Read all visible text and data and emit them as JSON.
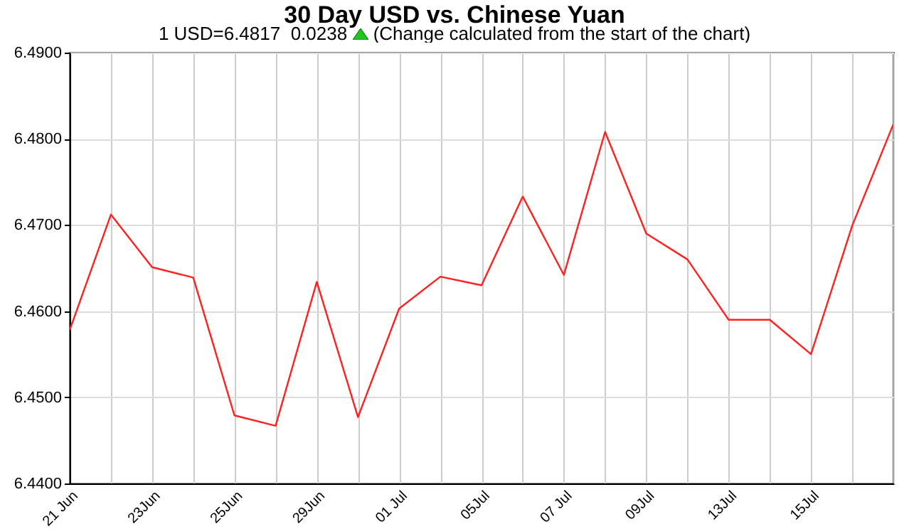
{
  "chart_data": {
    "type": "line",
    "title": "30 Day USD vs. Chinese Yuan",
    "subtitle": "1 USD=6.4817  0.0238",
    "annotations": [
      "(Change calculated from the start of the chart)"
    ],
    "categories": [
      "21 Jun",
      null,
      "23Jun",
      null,
      "25Jun",
      null,
      "29Jun",
      null,
      "01 Jul",
      null,
      "05Jul",
      null,
      "07 Jul",
      null,
      "09Jul",
      null,
      "13Jul",
      null,
      "15Jul",
      null,
      null
    ],
    "series": [
      {
        "color": "#ff2020",
        "values": [
          6.4578,
          6.4712,
          6.4651,
          6.4639,
          6.4479,
          6.4467,
          6.4634,
          6.4477,
          6.4603,
          6.464,
          6.463,
          6.4733,
          6.4642,
          6.4808,
          6.469,
          6.466,
          6.459,
          6.459,
          6.455,
          6.4699,
          6.4817
        ]
      }
    ],
    "ylim": [
      6.44,
      6.49
    ],
    "yticks": [
      {
        "value": 6.44,
        "label": "6.4400"
      },
      {
        "value": 6.45,
        "label": "6.4500"
      },
      {
        "value": 6.46,
        "label": "6.4600"
      },
      {
        "value": 6.47,
        "label": "6.4700"
      },
      {
        "value": 6.48,
        "label": "6.4800"
      },
      {
        "value": 6.49,
        "label": "6.4900"
      }
    ],
    "grid": true,
    "marker": "none",
    "line_style": "solid"
  }
}
